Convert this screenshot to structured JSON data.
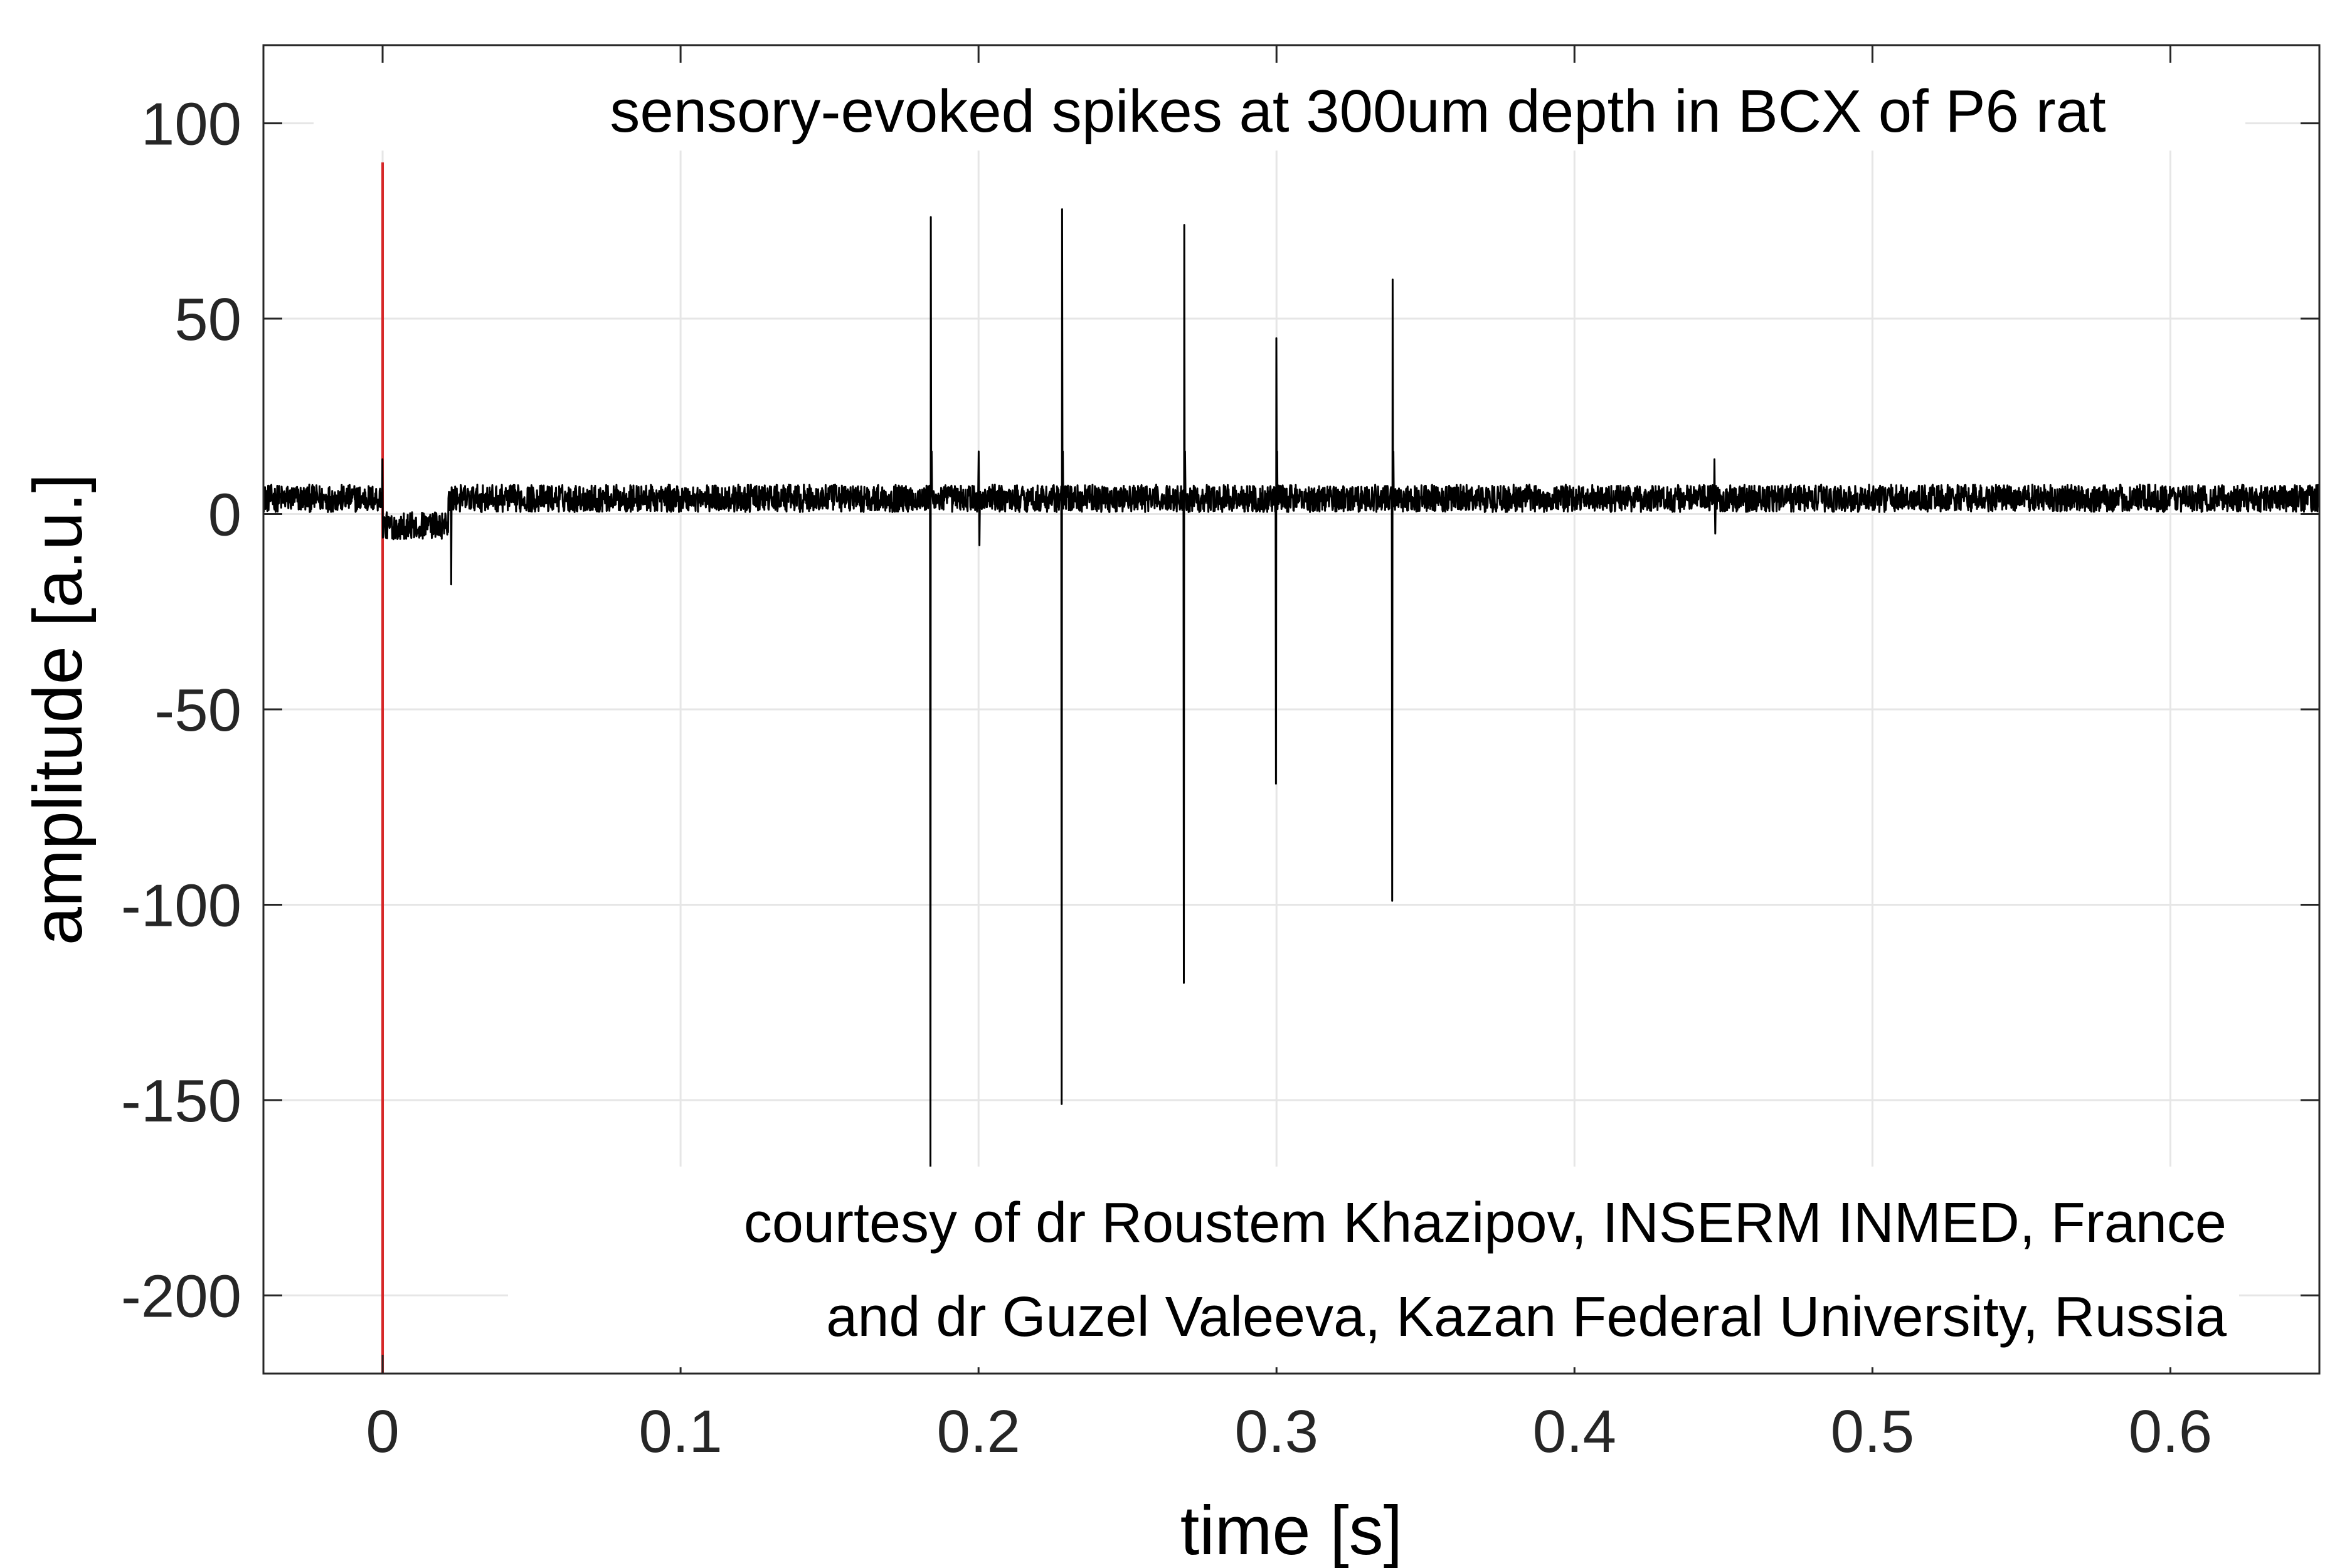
{
  "chart_data": {
    "type": "line",
    "title": "sensory-evoked spikes at 300um depth in BCX of P6 rat",
    "xlabel": "time [s]",
    "ylabel": "amplitude [a.u.]",
    "xlim": [
      -0.04,
      0.65
    ],
    "ylim": [
      -220,
      120
    ],
    "xticks": [
      0,
      0.1,
      0.2,
      0.3,
      0.4,
      0.5,
      0.6
    ],
    "xtick_labels": [
      "0",
      "0.1",
      "0.2",
      "0.3",
      "0.4",
      "0.5",
      "0.6"
    ],
    "yticks": [
      100,
      50,
      0,
      -50,
      -100,
      -150,
      -200
    ],
    "ytick_labels": [
      "100",
      "50",
      "0",
      "-50",
      "-100",
      "-150",
      "-200"
    ],
    "grid": true,
    "colors": {
      "trace": "#000000",
      "stimulus_marker": "#d62728"
    },
    "baseline": {
      "mean": 4,
      "noise_amplitude": 3.5
    },
    "stimulus_marker": {
      "x": 0,
      "y_top": 90,
      "y_bottom": -220
    },
    "stimulus_artifact": {
      "x_start": 0.0,
      "x_end": 0.022,
      "level": -3,
      "spike_x": 0.023,
      "spike_min": -18
    },
    "spikes": [
      {
        "x": 0.184,
        "max": 76,
        "min": -167
      },
      {
        "x": 0.228,
        "max": 78,
        "min": -151
      },
      {
        "x": 0.269,
        "max": 74,
        "min": -120
      },
      {
        "x": 0.3,
        "max": 45,
        "min": -69
      },
      {
        "x": 0.339,
        "max": 60,
        "min": -99
      }
    ],
    "minor_events": [
      {
        "x": 0.2,
        "max": 16,
        "min": -8
      },
      {
        "x": 0.447,
        "max": 14,
        "min": -5
      }
    ],
    "annotation": [
      "courtesy of dr Roustem Khazipov, INSERM INMED, France",
      "and dr Guzel Valeeva, Kazan Federal University, Russia"
    ]
  }
}
